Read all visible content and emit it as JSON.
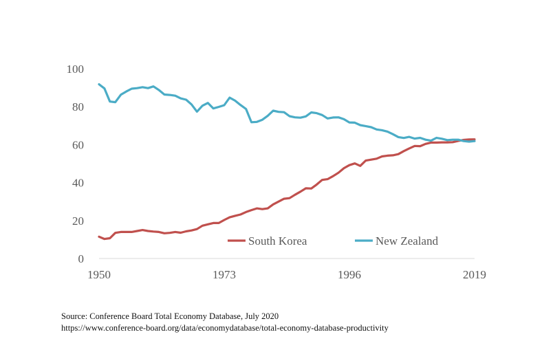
{
  "chart_data": {
    "type": "line",
    "title": "",
    "xlabel": "",
    "ylabel": "",
    "xlim": [
      1950,
      2019
    ],
    "ylim": [
      0,
      100
    ],
    "x_ticks": [
      1950,
      1973,
      1996,
      2019
    ],
    "y_ticks": [
      0,
      20,
      40,
      60,
      80,
      100
    ],
    "grid": false,
    "legend_position": "bottom-right",
    "x": [
      1950,
      1951,
      1952,
      1953,
      1954,
      1955,
      1956,
      1957,
      1958,
      1959,
      1960,
      1961,
      1962,
      1963,
      1964,
      1965,
      1966,
      1967,
      1968,
      1969,
      1970,
      1971,
      1972,
      1973,
      1974,
      1975,
      1976,
      1977,
      1978,
      1979,
      1980,
      1981,
      1982,
      1983,
      1984,
      1985,
      1986,
      1987,
      1988,
      1989,
      1990,
      1991,
      1992,
      1993,
      1994,
      1995,
      1996,
      1997,
      1998,
      1999,
      2000,
      2001,
      2002,
      2003,
      2004,
      2005,
      2006,
      2007,
      2008,
      2009,
      2010,
      2011,
      2012,
      2013,
      2014,
      2015,
      2016,
      2017,
      2018,
      2019
    ],
    "series": [
      {
        "name": "South Korea",
        "color": "#c0504d",
        "values": [
          11.5,
          10.3,
          10.7,
          13.5,
          14.0,
          14.0,
          14.0,
          14.5,
          15.0,
          14.5,
          14.2,
          14.0,
          13.3,
          13.5,
          14.0,
          13.6,
          14.3,
          14.8,
          15.5,
          17.3,
          18.0,
          18.7,
          18.7,
          20.3,
          21.7,
          22.5,
          23.2,
          24.5,
          25.5,
          26.4,
          26.0,
          26.4,
          28.5,
          30.0,
          31.5,
          31.8,
          33.6,
          35.2,
          37.0,
          36.9,
          39.0,
          41.4,
          41.8,
          43.4,
          45.2,
          47.6,
          49.2,
          50.1,
          48.8,
          51.6,
          52.1,
          52.6,
          53.8,
          54.2,
          54.4,
          55.0,
          56.6,
          58.0,
          59.3,
          59.2,
          60.4,
          61.1,
          61.1,
          61.2,
          61.2,
          61.3,
          62.0,
          62.5,
          62.7,
          62.8
        ]
      },
      {
        "name": "New Zealand",
        "color": "#4bacc6",
        "values": [
          91.8,
          89.6,
          82.7,
          82.4,
          86.3,
          88.0,
          89.5,
          89.8,
          90.3,
          89.8,
          90.7,
          88.8,
          86.4,
          86.2,
          85.8,
          84.4,
          83.7,
          81.2,
          77.4,
          80.5,
          82.0,
          79.1,
          79.9,
          80.8,
          84.8,
          83.2,
          80.9,
          78.8,
          71.8,
          72.0,
          73.1,
          75.2,
          77.9,
          77.3,
          77.1,
          75.0,
          74.4,
          74.2,
          74.9,
          77.0,
          76.6,
          75.6,
          73.8,
          74.3,
          74.4,
          73.4,
          71.7,
          71.6,
          70.3,
          69.8,
          69.2,
          68.0,
          67.6,
          66.9,
          65.5,
          64.0,
          63.5,
          64.1,
          63.2,
          63.6,
          62.6,
          62.1,
          63.6,
          63.1,
          62.4,
          62.6,
          62.6,
          61.9,
          61.6,
          61.9
        ]
      }
    ]
  },
  "source_line_1": "Source: Conference Board Total Economy Database, July 2020",
  "source_line_2": "https://www.conference-board.org/data/economydatabase/total-economy-database-productivity"
}
